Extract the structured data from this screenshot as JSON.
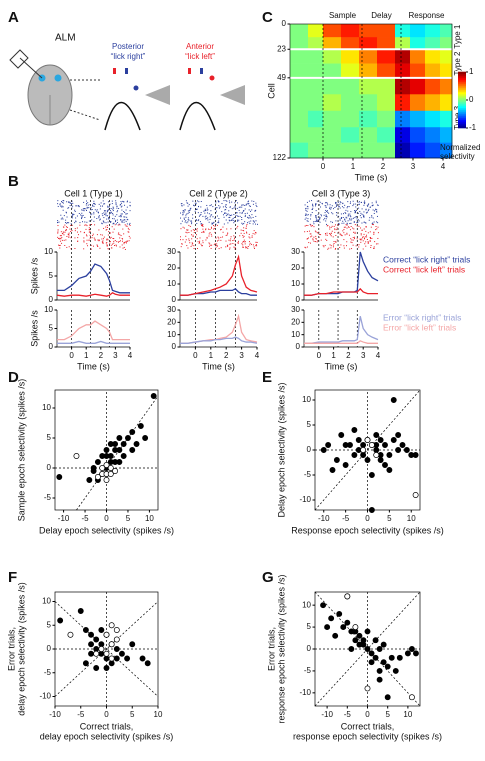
{
  "panel_labels": [
    "A",
    "B",
    "C",
    "D",
    "E",
    "F",
    "G"
  ],
  "diagram": {
    "title": "ALM",
    "posterior": "Posterior",
    "lick_right": "“lick right”",
    "anterior": "Anterior",
    "lick_left": "“lick left”"
  },
  "chart_data": [
    {
      "type": "heatmap",
      "xlabel": "Time (s)",
      "ylabel": "Cell",
      "xlim": [
        -1.1,
        4.3
      ],
      "ylim": [
        0,
        122
      ],
      "y_inverted": true,
      "xticks": [
        0,
        1,
        2,
        3,
        4
      ],
      "yticks": [
        0,
        23,
        49,
        122
      ],
      "vlines": [
        0,
        1.3,
        2.6
      ],
      "epoch_labels": [
        "Sample",
        "Delay",
        "Response"
      ],
      "type_labels": [
        "Type 1",
        "Type 2",
        "Type 3"
      ],
      "colorbar_label": [
        "Normalized",
        "selectivity"
      ],
      "colorbar_lim": [
        -1,
        1
      ],
      "colorbar_ticks": [
        1,
        0,
        -1
      ],
      "x_edges": [
        -1.1,
        -0.5,
        0,
        0.6,
        1.2,
        1.8,
        2.4,
        2.9,
        3.4,
        3.9,
        4.3
      ],
      "y_edges": [
        0,
        12,
        23,
        36,
        49,
        64,
        79,
        94,
        108,
        122
      ],
      "z": [
        [
          0,
          0.2,
          0.6,
          0.7,
          0.6,
          0.6,
          -0.2,
          -0.3,
          -0.2,
          -0.1
        ],
        [
          0,
          0.1,
          0.4,
          0.6,
          0.7,
          0.6,
          0.1,
          -0.2,
          -0.1,
          0
        ],
        [
          0,
          0,
          0.1,
          0.3,
          0.5,
          0.7,
          0.9,
          0.5,
          0.3,
          0.2
        ],
        [
          0,
          0,
          0,
          0.2,
          0.4,
          0.6,
          0.8,
          0.6,
          0.4,
          0.3
        ],
        [
          0,
          0,
          0,
          0,
          0.1,
          0.1,
          0.9,
          0.8,
          0.6,
          0.5
        ],
        [
          0,
          0,
          0.1,
          0,
          0,
          0.1,
          0.7,
          0.5,
          0.4,
          0.3
        ],
        [
          0,
          -0.1,
          0,
          0,
          -0.1,
          0,
          -0.5,
          -0.4,
          -0.3,
          -0.2
        ],
        [
          0,
          0,
          0,
          -0.1,
          0,
          -0.1,
          -0.8,
          -0.6,
          -0.5,
          -0.4
        ],
        [
          -0.1,
          0,
          0,
          0,
          0,
          0,
          -0.9,
          -0.7,
          -0.6,
          -0.5
        ]
      ]
    },
    {
      "type": "line",
      "title": "Cell 1 (Type 1)",
      "ylabel": "Spikes /s",
      "xlim": [
        -1,
        4
      ],
      "ylim": [
        0,
        10
      ],
      "yticks": [
        0,
        5,
        10
      ],
      "vlines": [
        0,
        1.3,
        2.6
      ],
      "raster": true,
      "x": [
        -1,
        -0.5,
        0,
        0.5,
        1,
        1.3,
        1.6,
        2,
        2.4,
        2.6,
        2.8,
        3,
        3.3,
        3.6,
        4
      ],
      "series": [
        {
          "color": "#2b3f9e",
          "values": [
            2,
            2,
            3,
            4.5,
            5,
            6,
            7.5,
            7,
            5.5,
            4,
            2,
            1.8,
            1.5,
            1.5,
            1.5
          ]
        },
        {
          "color": "#e8212a",
          "values": [
            1,
            0.8,
            1,
            1,
            0.8,
            1,
            1.2,
            1,
            0.8,
            1,
            1.5,
            1.2,
            1,
            1,
            1
          ]
        }
      ]
    },
    {
      "type": "line",
      "xlabel": "Time (s)",
      "ylabel": "Spikes /s",
      "xlim": [
        -1,
        4
      ],
      "ylim": [
        0,
        10
      ],
      "xticks": [
        0,
        1,
        2,
        3,
        4
      ],
      "yticks": [
        0,
        5,
        10
      ],
      "vlines": [
        0,
        1.3,
        2.6
      ],
      "x": [
        -1,
        -0.5,
        0,
        0.5,
        1,
        1.3,
        1.6,
        2,
        2.4,
        2.6,
        2.8,
        3,
        3.3,
        3.6,
        4
      ],
      "series": [
        {
          "color": "#f4a7a7",
          "values": [
            2,
            2,
            3,
            5,
            6,
            6,
            7,
            6,
            5,
            4,
            2,
            2,
            2,
            2,
            2
          ]
        },
        {
          "color": "#9aa3d8",
          "values": [
            1,
            1,
            1,
            1.5,
            1,
            1,
            1,
            1.5,
            1,
            1,
            1,
            1,
            1,
            1,
            1
          ]
        }
      ]
    },
    {
      "type": "line",
      "title": "Cell 2 (Type 2)",
      "xlim": [
        -1,
        4
      ],
      "ylim": [
        0,
        30
      ],
      "yticks": [
        0,
        10,
        20,
        30
      ],
      "vlines": [
        0,
        1.3,
        2.6
      ],
      "raster": true,
      "x": [
        -1,
        -0.5,
        0,
        0.5,
        1,
        1.3,
        1.6,
        2,
        2.4,
        2.6,
        2.8,
        3,
        3.3,
        3.6,
        4
      ],
      "series": [
        {
          "color": "#2b3f9e",
          "values": [
            3,
            3,
            4,
            4,
            5,
            5,
            6,
            6,
            6,
            7,
            5,
            4,
            4,
            3,
            3
          ]
        },
        {
          "color": "#e8212a",
          "values": [
            3,
            3,
            4,
            5,
            6,
            7,
            8,
            10,
            15,
            22,
            27,
            15,
            8,
            6,
            5
          ]
        }
      ]
    },
    {
      "type": "line",
      "xlabel": "Time (s)",
      "xlim": [
        -1,
        4
      ],
      "ylim": [
        0,
        30
      ],
      "xticks": [
        0,
        1,
        2,
        3,
        4
      ],
      "yticks": [
        0,
        10,
        20,
        30
      ],
      "vlines": [
        0,
        1.3,
        2.6
      ],
      "x": [
        -1,
        -0.5,
        0,
        0.5,
        1,
        1.3,
        1.6,
        2,
        2.4,
        2.6,
        2.8,
        3,
        3.3,
        3.6,
        4
      ],
      "series": [
        {
          "color": "#f4a7a7",
          "values": [
            3,
            3,
            4,
            5,
            6,
            6,
            7,
            8,
            12,
            18,
            25,
            12,
            6,
            5,
            4
          ]
        },
        {
          "color": "#9aa3d8",
          "values": [
            3,
            3,
            4,
            5,
            5,
            6,
            6,
            7,
            7,
            8,
            7,
            5,
            4,
            4,
            3
          ]
        }
      ]
    },
    {
      "type": "line",
      "title": "Cell 3 (Type 3)",
      "xlim": [
        -1,
        4
      ],
      "ylim": [
        0,
        30
      ],
      "yticks": [
        0,
        10,
        20,
        30
      ],
      "vlines": [
        0,
        1.3,
        2.6
      ],
      "raster": true,
      "x": [
        -1,
        -0.5,
        0,
        0.5,
        1,
        1.3,
        1.6,
        2,
        2.4,
        2.6,
        2.8,
        3,
        3.3,
        3.6,
        4
      ],
      "series": [
        {
          "name": "Correct “lick right” trials",
          "color": "#2b3f9e",
          "values": [
            3,
            3,
            4,
            4,
            4,
            4,
            5,
            5,
            5,
            6,
            30,
            24,
            18,
            14,
            12
          ]
        },
        {
          "name": "Correct “lick left” trials",
          "color": "#e8212a",
          "values": [
            3,
            3,
            4,
            4,
            5,
            5,
            5,
            5,
            5,
            5,
            7,
            5,
            4,
            4,
            4
          ]
        }
      ]
    },
    {
      "type": "line",
      "xlabel": "Time (s)",
      "xlim": [
        -1,
        4
      ],
      "ylim": [
        0,
        30
      ],
      "xticks": [
        0,
        1,
        2,
        3,
        4
      ],
      "yticks": [
        0,
        10,
        20,
        30
      ],
      "vlines": [
        0,
        1.3,
        2.6
      ],
      "x": [
        -1,
        -0.5,
        0,
        0.5,
        1,
        1.3,
        1.6,
        2,
        2.4,
        2.6,
        2.8,
        3,
        3.3,
        3.6,
        4
      ],
      "series": [
        {
          "name": "Error “lick right” trials",
          "color": "#9aa3d8",
          "values": [
            3,
            3,
            4,
            4,
            4,
            4,
            5,
            5,
            5,
            6,
            25,
            15,
            10,
            8,
            6
          ]
        },
        {
          "name": "Error “lick left” trials",
          "color": "#f4a7a7",
          "values": [
            3,
            3,
            3,
            3,
            3,
            3,
            3,
            3,
            3,
            3,
            5,
            4,
            3,
            3,
            3
          ]
        }
      ]
    },
    {
      "type": "scatter",
      "xlabel": [
        "Delay epoch selectivity (spikes /s)"
      ],
      "ylabel": [
        "Sample epoch selectivity (spikes /s)"
      ],
      "xlim": [
        -12,
        12
      ],
      "ylim": [
        -7,
        13
      ],
      "xticks": [
        -10,
        -5,
        0,
        5,
        10
      ],
      "yticks": [
        -5,
        0,
        5,
        10
      ],
      "identity_line": true,
      "anti_identity_line": false,
      "series": [
        {
          "color": "#000000",
          "filled": true,
          "x": [
            -11,
            -3,
            -2,
            -1,
            0,
            1,
            2,
            3,
            4,
            5,
            6,
            8,
            11,
            -4,
            -2,
            0,
            1,
            2,
            3,
            -1,
            4,
            0,
            1,
            2,
            -3,
            6,
            7,
            9,
            3,
            0
          ],
          "values": [
            -1.5,
            -0.5,
            1,
            2,
            3,
            2,
            4,
            5,
            4,
            5,
            6,
            7,
            12,
            -2,
            -2,
            0,
            1,
            1,
            3,
            -1,
            2,
            2,
            4,
            3,
            0,
            3,
            4,
            5,
            1,
            -1
          ]
        },
        {
          "color": "#000000",
          "filled": false,
          "x": [
            -7,
            -1,
            0,
            1,
            -2,
            0,
            1,
            -1,
            2,
            0
          ],
          "values": [
            2,
            -1,
            -1,
            -1,
            -1.5,
            0.5,
            0,
            0,
            -0.5,
            -2
          ]
        }
      ]
    },
    {
      "type": "scatter",
      "xlabel": [
        "Response epoch selectivity (spikes /s)"
      ],
      "ylabel": [
        "Delay epoch selectivity (spikes /s)"
      ],
      "xlim": [
        -12,
        12
      ],
      "ylim": [
        -12,
        12
      ],
      "xticks": [
        -10,
        -5,
        0,
        5,
        10
      ],
      "yticks": [
        -10,
        -5,
        0,
        5,
        10
      ],
      "identity_line": true,
      "anti_identity_line": false,
      "series": [
        {
          "color": "#000000",
          "filled": true,
          "x": [
            -10,
            -9,
            -7,
            -6,
            -5,
            -4,
            -3,
            -2,
            -1,
            0,
            0,
            1,
            1,
            2,
            2,
            3,
            3,
            4,
            4,
            5,
            6,
            7,
            8,
            9,
            10,
            11,
            -3,
            -1,
            1,
            3,
            5,
            -2,
            2,
            6,
            7,
            -8,
            -5
          ],
          "values": [
            0,
            1,
            -2,
            3,
            -3,
            1,
            4,
            2,
            -1,
            -2,
            2,
            -5,
            1,
            3,
            0,
            -1,
            2,
            1,
            -3,
            -1,
            10,
            0,
            1,
            0,
            -1,
            -1,
            -1,
            1,
            -12,
            -2,
            -4,
            0,
            1,
            2,
            3,
            -4,
            1
          ]
        },
        {
          "color": "#000000",
          "filled": false,
          "x": [
            1,
            2,
            -1,
            0,
            11
          ],
          "values": [
            1,
            -1,
            0,
            2,
            -9
          ]
        }
      ]
    },
    {
      "type": "scatter",
      "xlabel": [
        "Correct trials,",
        "delay epoch selectivity (spikes /s)"
      ],
      "ylabel": [
        "Error trials,",
        "delay epoch selectivity (spikes /s)"
      ],
      "xlim": [
        -10,
        10
      ],
      "ylim": [
        -12,
        12
      ],
      "xticks": [
        -10,
        -5,
        0,
        5,
        10
      ],
      "yticks": [
        -10,
        -5,
        0,
        5,
        10
      ],
      "identity_line": true,
      "anti_identity_line": true,
      "series": [
        {
          "color": "#000000",
          "filled": true,
          "x": [
            -9,
            -5,
            -4,
            -3,
            -3,
            -2,
            -2,
            -1,
            -1,
            0,
            0,
            1,
            1,
            2,
            2,
            -4,
            -2,
            3,
            4,
            7,
            8,
            5,
            -1,
            -3,
            0
          ],
          "values": [
            6,
            8,
            4,
            3,
            1,
            2,
            0,
            1,
            -1,
            3,
            -2,
            1,
            -3,
            -2,
            0,
            -3,
            -4,
            -1,
            -2,
            -2,
            -3,
            1,
            4,
            -1,
            -4
          ]
        },
        {
          "color": "#000000",
          "filled": false,
          "x": [
            -7,
            0,
            1,
            2,
            -1,
            0,
            1,
            2,
            -2,
            1
          ],
          "values": [
            3,
            3,
            5,
            4,
            0,
            -1,
            -2,
            2,
            -1,
            1
          ]
        }
      ]
    },
    {
      "type": "scatter",
      "xlabel": [
        "Correct trials,",
        "response epoch selectivity (spikes /s)"
      ],
      "ylabel": [
        "Error trials,",
        "response epoch selectivity (spikes /s)"
      ],
      "xlim": [
        -13,
        13
      ],
      "ylim": [
        -13,
        13
      ],
      "xticks": [
        -10,
        -5,
        0,
        5,
        10
      ],
      "yticks": [
        -10,
        -5,
        0,
        5,
        10
      ],
      "identity_line": true,
      "anti_identity_line": true,
      "series": [
        {
          "color": "#000000",
          "filled": true,
          "x": [
            -11,
            -10,
            -9,
            -8,
            -7,
            -6,
            -5,
            -4,
            -3,
            -2,
            -1,
            0,
            1,
            2,
            3,
            4,
            5,
            6,
            7,
            8,
            -5,
            -3,
            -1,
            1,
            3,
            5,
            -4,
            -2,
            2,
            4,
            10,
            11,
            12,
            0,
            3
          ],
          "values": [
            10,
            5,
            7,
            3,
            8,
            5,
            6,
            4,
            2,
            3,
            1,
            0,
            -1,
            -2,
            0,
            -3,
            -4,
            -2,
            -5,
            -2,
            12,
            4,
            2,
            -3,
            -7,
            -11,
            0,
            1,
            2,
            1,
            -1,
            0,
            -1,
            4,
            -5
          ]
        },
        {
          "color": "#000000",
          "filled": false,
          "x": [
            -5,
            -3,
            0,
            11
          ],
          "values": [
            12,
            5,
            -9,
            -11
          ]
        }
      ]
    }
  ]
}
